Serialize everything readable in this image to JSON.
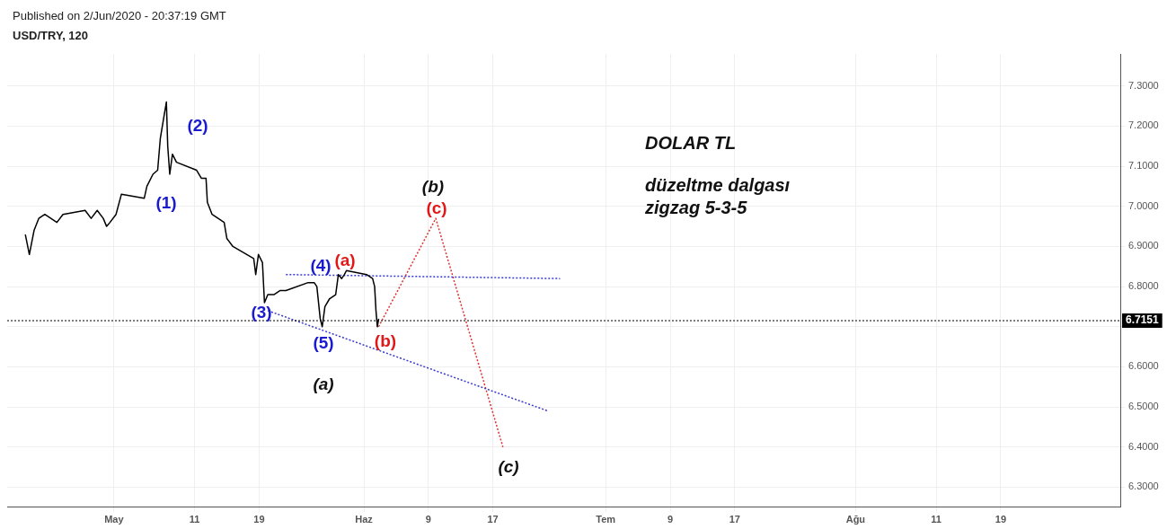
{
  "chart_data": {
    "type": "line",
    "title": "USD/TRY, 120",
    "subtitle": "Published on 2/Jun/2020 - 20:37:19 GMT",
    "x": [
      "2020-04-20T00:00",
      "2020-04-20T12:00",
      "2020-04-21T02:00",
      "2020-04-21T16:00",
      "2020-04-22T10:00",
      "2020-04-23T04:00",
      "2020-04-23T22:00",
      "2020-04-24T16:00",
      "2020-04-27T10:00",
      "2020-04-28T04:00",
      "2020-04-28T22:00",
      "2020-04-29T16:00",
      "2020-04-30T02:00",
      "2020-04-30T12:00",
      "2020-05-01T06:00",
      "2020-05-01T22:00",
      "2020-05-04T18:00",
      "2020-05-05T02:00",
      "2020-05-05T20:00",
      "2020-05-06T10:00",
      "2020-05-06T18:00",
      "2020-05-07T04:00",
      "2020-05-07T12:00",
      "2020-05-07T16:00",
      "2020-05-07T22:00",
      "2020-05-08T06:00",
      "2020-05-08T18:00",
      "2020-05-11T06:00",
      "2020-05-11T20:00",
      "2020-05-12T10:00",
      "2020-05-12T14:00",
      "2020-05-13T04:00",
      "2020-05-13T22:00",
      "2020-05-14T16:00",
      "2020-05-15T00:00",
      "2020-05-15T18:00",
      "2020-05-18T08:00",
      "2020-05-18T14:00",
      "2020-05-18T22:00",
      "2020-05-19T10:00",
      "2020-05-19T16:00",
      "2020-05-20T02:00",
      "2020-05-20T20:00",
      "2020-05-21T14:00",
      "2020-05-22T08:00",
      "2020-05-25T02:00",
      "2020-05-25T20:00",
      "2020-05-26T04:00",
      "2020-05-26T14:00",
      "2020-05-26T20:00",
      "2020-05-27T04:00",
      "2020-05-27T18:00",
      "2020-05-28T12:00",
      "2020-05-28T20:00",
      "2020-05-29T06:00",
      "2020-05-29T14:00",
      "2020-05-29T20:00",
      "2020-06-01T08:00",
      "2020-06-02T02:00",
      "2020-06-02T08:00",
      "2020-06-02T12:00",
      "2020-06-02T16:00",
      "2020-06-02T20:00"
    ],
    "series": [
      {
        "color": "#000000",
        "values": [
          6.93,
          6.88,
          6.94,
          6.97,
          6.98,
          6.97,
          6.96,
          6.98,
          6.99,
          6.97,
          6.99,
          6.97,
          6.95,
          6.96,
          6.98,
          7.03,
          7.02,
          7.05,
          7.08,
          7.09,
          7.17,
          7.22,
          7.26,
          7.15,
          7.08,
          7.13,
          7.11,
          7.09,
          7.07,
          7.07,
          7.01,
          6.98,
          6.97,
          6.96,
          6.92,
          6.9,
          6.87,
          6.83,
          6.88,
          6.86,
          6.76,
          6.78,
          6.78,
          6.79,
          6.79,
          6.81,
          6.81,
          6.8,
          6.72,
          6.7,
          6.75,
          6.77,
          6.78,
          6.83,
          6.82,
          6.83,
          6.84,
          6.83,
          6.82,
          6.8,
          6.74,
          6.7,
          6.72
        ]
      },
      {
        "type": "line",
        "color": "#3a3acc",
        "line_style": "dotted",
        "x": [
          "2020-05-20T02:00",
          "2020-06-23T20:00"
        ],
        "values": [
          6.74,
          6.49
        ]
      },
      {
        "type": "line",
        "color": "#3a3acc",
        "line_style": "dotted",
        "x": [
          "2020-05-22T08:00",
          "2020-06-25T08:00"
        ],
        "values": [
          6.83,
          6.82
        ]
      },
      {
        "type": "line",
        "color": "#e03030",
        "line_style": "dotted",
        "x": [
          "2020-06-02T20:00",
          "2020-06-09T22:00",
          "2020-06-18T06:00"
        ],
        "values": [
          6.7,
          6.97,
          6.4
        ]
      }
    ],
    "xlim": [
      "2020-04-17T18:00",
      "2020-09-02T20:00"
    ],
    "xticks": [
      {
        "value": "2020-05-01",
        "label": "May"
      },
      {
        "value": "2020-05-11",
        "label": "11"
      },
      {
        "value": "2020-05-19",
        "label": "19"
      },
      {
        "value": "2020-06-01",
        "label": "Haz"
      },
      {
        "value": "2020-06-09",
        "label": "9"
      },
      {
        "value": "2020-06-17",
        "label": "17"
      },
      {
        "value": "2020-07-01",
        "label": "Tem"
      },
      {
        "value": "2020-07-09",
        "label": "9"
      },
      {
        "value": "2020-07-17",
        "label": "17"
      },
      {
        "value": "2020-08-01",
        "label": "Ağu"
      },
      {
        "value": "2020-08-11",
        "label": "11"
      },
      {
        "value": "2020-08-19",
        "label": "19"
      }
    ],
    "ylim": [
      6.25,
      7.38
    ],
    "yticks": [
      {
        "value": 6.3,
        "label": "6.3000"
      },
      {
        "value": 6.4,
        "label": "6.4000"
      },
      {
        "value": 6.5,
        "label": "6.5000"
      },
      {
        "value": 6.6,
        "label": "6.6000"
      },
      {
        "value": 6.7,
        "label": null
      },
      {
        "value": 6.8,
        "label": "6.8000"
      },
      {
        "value": 6.9,
        "label": "6.9000"
      },
      {
        "value": 7.0,
        "label": "7.0000"
      },
      {
        "value": 7.1,
        "label": "7.1000"
      },
      {
        "value": 7.2,
        "label": "7.2000"
      },
      {
        "value": 7.3,
        "label": "7.3000"
      }
    ],
    "ref_lines": [
      {
        "axis": "y",
        "value": 6.7151,
        "label": "6.7151",
        "color": "#000000",
        "line_style": "dotted"
      }
    ],
    "grid": true,
    "legend": false,
    "marker": "none",
    "annotations": [
      "(1)",
      "(2)",
      "(3)",
      "(4)",
      "(5)",
      "(a)",
      "(b)",
      "(c)",
      "(a)",
      "(b)",
      "(c)",
      "DOLAR TL",
      "düzeltme dalgası",
      "zigzag 5-3-5"
    ]
  }
}
